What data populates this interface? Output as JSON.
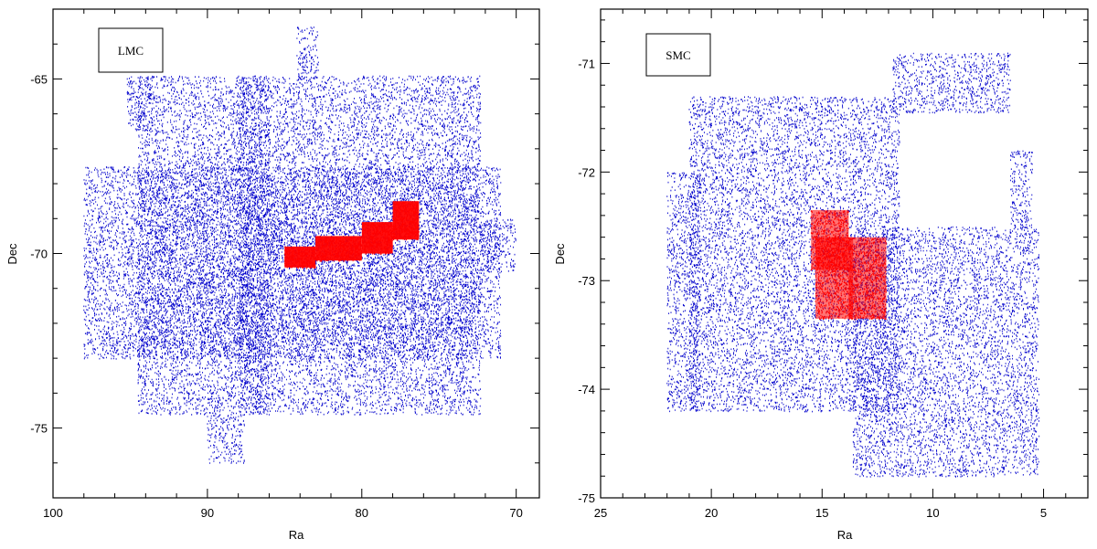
{
  "chart_data": [
    {
      "type": "scatter",
      "panel": "left",
      "xlabel": "Ra",
      "ylabel": "Dec",
      "xlim": [
        100,
        68.5
      ],
      "ylim": [
        -77,
        -63
      ],
      "xticks": [
        100,
        90,
        80,
        70
      ],
      "yticks": [
        -65,
        -70,
        -75
      ],
      "legend_text": "LMC",
      "legend_position": "top-left",
      "series_colors": {
        "field": "#0000cc",
        "subset": "#ff0000"
      },
      "field_regions": [
        {
          "ra": [
            94.5,
            86
          ],
          "dec": [
            -64.9,
            -74.6
          ]
        },
        {
          "ra": [
            88,
            72.3
          ],
          "dec": [
            -64.9,
            -74.6
          ]
        },
        {
          "ra": [
            98,
            71
          ],
          "dec": [
            -67.5,
            -73
          ]
        },
        {
          "ra": [
            95.2,
            93.5
          ],
          "dec": [
            -64.9,
            -66.5
          ]
        },
        {
          "ra": [
            84.2,
            82.8
          ],
          "dec": [
            -63.5,
            -65
          ]
        },
        {
          "ra": [
            90,
            87.6
          ],
          "dec": [
            -74.6,
            -76
          ]
        },
        {
          "ra": [
            72.3,
            70
          ],
          "dec": [
            -69,
            -70.5
          ]
        }
      ],
      "subset_segments": [
        {
          "ra": [
            85,
            83
          ],
          "dec": [
            -69.8,
            -70.4
          ]
        },
        {
          "ra": [
            83,
            80
          ],
          "dec": [
            -69.5,
            -70.2
          ]
        },
        {
          "ra": [
            80,
            78
          ],
          "dec": [
            -69.1,
            -70
          ]
        },
        {
          "ra": [
            78,
            76.3
          ],
          "dec": [
            -68.5,
            -69.6
          ]
        }
      ]
    },
    {
      "type": "scatter",
      "panel": "right",
      "xlabel": "Ra",
      "ylabel": "Dec",
      "xlim": [
        25,
        3
      ],
      "ylim": [
        -75,
        -70.5
      ],
      "xticks": [
        25,
        20,
        15,
        10,
        5
      ],
      "yticks": [
        -71,
        -72,
        -73,
        -74,
        -75
      ],
      "legend_text": "SMC",
      "legend_position": "top-left",
      "series_colors": {
        "field": "#0000cc",
        "subset": "#ff0000"
      },
      "field_regions": [
        {
          "ra": [
            21,
            11.5
          ],
          "dec": [
            -71.3,
            -74.2
          ]
        },
        {
          "ra": [
            13.6,
            5.2
          ],
          "dec": [
            -72.5,
            -74.8
          ]
        },
        {
          "ra": [
            11.8,
            6.5
          ],
          "dec": [
            -70.9,
            -71.45
          ]
        },
        {
          "ra": [
            6.5,
            5.5
          ],
          "dec": [
            -71.8,
            -72.5
          ]
        },
        {
          "ra": [
            22,
            20.5
          ],
          "dec": [
            -72,
            -74.2
          ]
        }
      ],
      "subset_segments": [
        {
          "ra": [
            15.5,
            13.8
          ],
          "dec": [
            -72.35,
            -72.9
          ]
        },
        {
          "ra": [
            15.3,
            13.6
          ],
          "dec": [
            -72.6,
            -73.35
          ]
        },
        {
          "ra": [
            13.8,
            12.1
          ],
          "dec": [
            -72.6,
            -73.35
          ]
        }
      ]
    }
  ]
}
